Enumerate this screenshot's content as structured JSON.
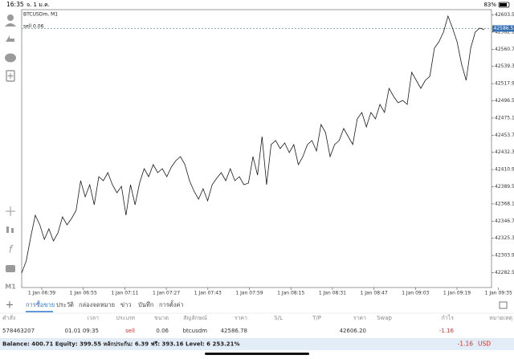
{
  "status_bar": {
    "time": "16:35",
    "date": "จ. 1 ม.ค.",
    "battery": "83%"
  },
  "chart_data": {
    "type": "line",
    "title": "BTCUSDm, M1",
    "order_label": "sell 0.06",
    "price_label": "42586.52",
    "price_level": 42586.52,
    "x_labels": [
      "1 Jan 06:39",
      "1 Jan 06:55",
      "1 Jan 07:11",
      "1 Jan 07:27",
      "1 Jan 07:43",
      "1 Jan 07:59",
      "1 Jan 08:15",
      "1 Jan 08:31",
      "1 Jan 08:47",
      "1 Jan 09:03",
      "1 Jan 09:19",
      "1 Jan 09:35"
    ],
    "series": [
      {
        "name": "BTCUSDm",
        "color": "#1a1a1a",
        "values": [
          42282,
          42297,
          42327,
          42354,
          42342,
          42324,
          42337,
          42322,
          42332,
          42352,
          42342,
          42350,
          42360,
          42397,
          42377,
          42392,
          42367,
          42402,
          42397,
          42407,
          42392,
          42382,
          42390,
          42354,
          42392,
          42367,
          42394,
          42412,
          42402,
          42417,
          42407,
          42412,
          42402,
          42414,
          42422,
          42427,
          42417,
          42397,
          42384,
          42374,
          42387,
          42372,
          42392,
          42400,
          42407,
          42397,
          42412,
          42397,
          42402,
          42392,
          42394,
          42427,
          42404,
          42452,
          42392,
          42442,
          42447,
          42437,
          42444,
          42432,
          42442,
          42417,
          42427,
          42442,
          42447,
          42434,
          42467,
          42457,
          42427,
          42442,
          42447,
          42462,
          42452,
          42442,
          42474,
          42482,
          42464,
          42482,
          42474,
          42492,
          42482,
          42512,
          42502,
          42494,
          42497,
          42492,
          42532,
          42522,
          42512,
          42522,
          42527,
          42562,
          42570,
          42582,
          42602,
          42587,
          42570,
          42542,
          42522,
          42562,
          42582,
          42587,
          42585
        ]
      }
    ],
    "ylim": [
      42264,
      42608
    ],
    "yticks": [
      {
        "value": 42603.5,
        "label": "42603.50"
      },
      {
        "value": 42582.1,
        "label": "42582.10"
      },
      {
        "value": 42560.7,
        "label": "42560.70"
      },
      {
        "value": 42539.3,
        "label": "42539.30"
      },
      {
        "value": 42517.9,
        "label": "42517.90"
      },
      {
        "value": 42496.5,
        "label": "42496.50"
      },
      {
        "value": 42475.1,
        "label": "42475.10"
      },
      {
        "value": 42453.7,
        "label": "42453.70"
      },
      {
        "value": 42432.3,
        "label": "42432.30"
      },
      {
        "value": 42410.9,
        "label": "42410.90"
      },
      {
        "value": 42389.5,
        "label": "42389.50"
      },
      {
        "value": 42368.1,
        "label": "42368.10"
      },
      {
        "value": 42346.7,
        "label": "42346.70"
      },
      {
        "value": 42325.3,
        "label": "42325.30"
      },
      {
        "value": 42303.9,
        "label": "42303.90"
      },
      {
        "value": 42282.5,
        "label": "42282.50"
      }
    ]
  },
  "sidebar": {
    "timeframe": "M1"
  },
  "tabs": [
    "การซื้อขาย",
    "ประวัติ",
    "กล่องจดหมาย",
    "ข่าว",
    "บันทึก",
    "การตั้งค่า"
  ],
  "table": {
    "headers": [
      "คำสั่ง",
      "เวลา",
      "ประเภท",
      "ขนาด",
      "สัญลักษณ์",
      "ราคา",
      "S/L",
      "T/P",
      "ราคา",
      "Swap",
      "กำไร",
      "หมายเหตุ"
    ],
    "rows": [
      [
        "578463207",
        "01.01 09:35",
        "sell",
        "0.06",
        "btcusdm",
        "42586.78",
        "",
        "",
        "42606.20",
        "",
        "-1.16",
        ""
      ]
    ]
  },
  "footer": {
    "summary": "Balance: 400.71 Equity: 399.55 หลักประกัน: 6.39 ฟรี: 393.16 Level: 6 253.21%",
    "profit": "-1.16",
    "currency": "USD"
  }
}
